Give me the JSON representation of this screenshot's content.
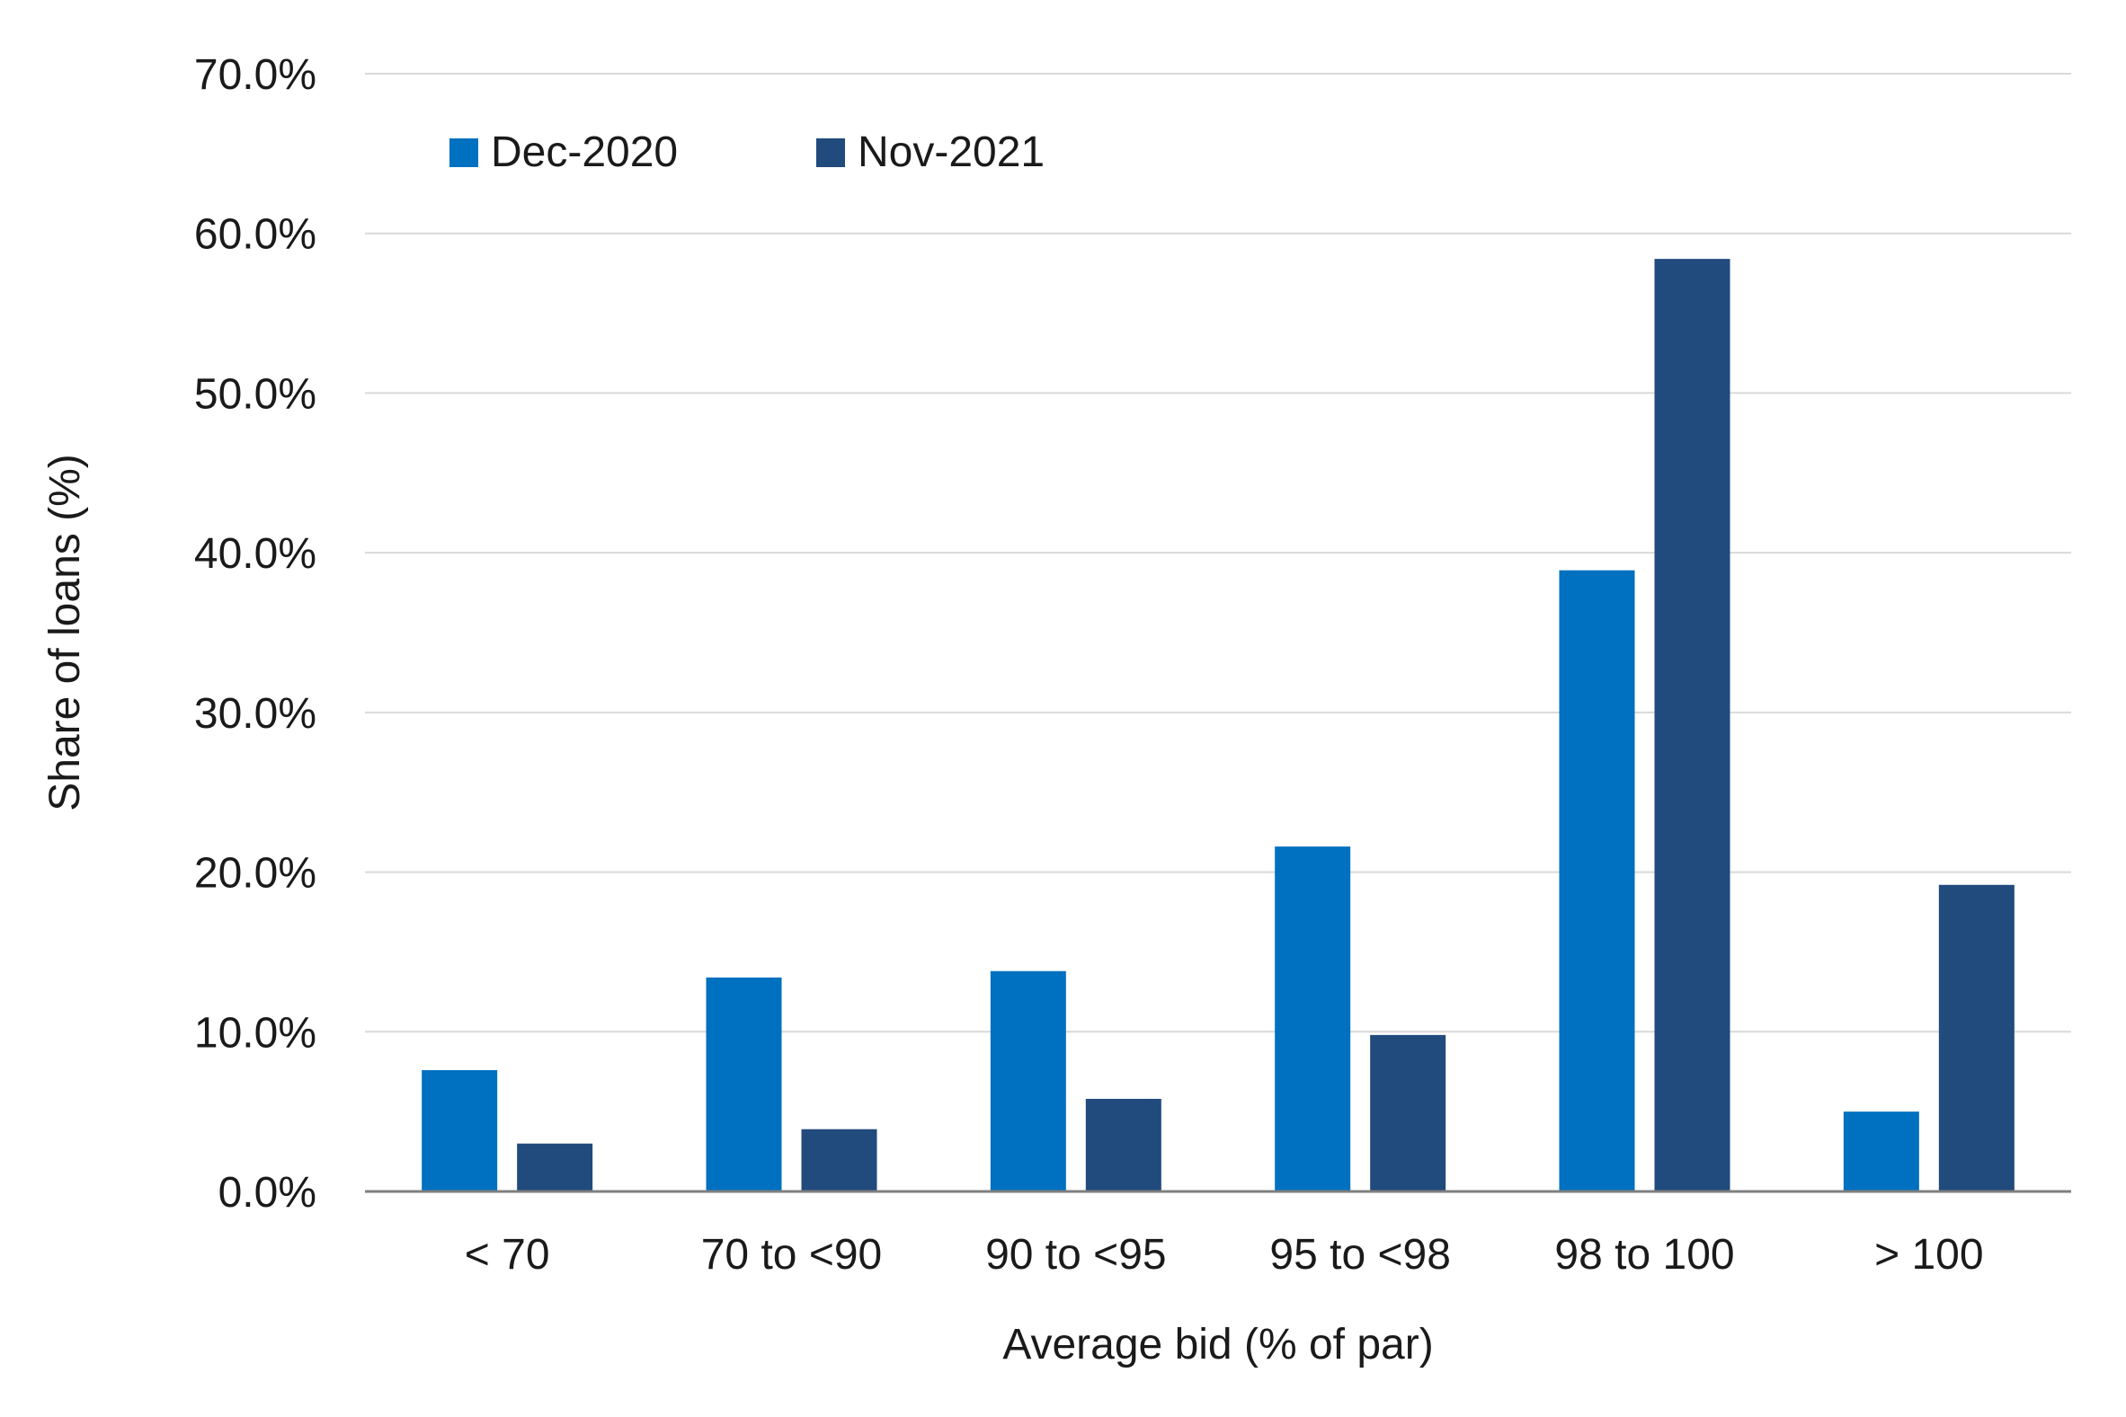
{
  "chart_data": {
    "type": "bar",
    "title": "",
    "xlabel": "Average bid (% of par)",
    "ylabel": "Share of loans (%)",
    "ylim": [
      0,
      70
    ],
    "y_ticks": [
      "0.0%",
      "10.0%",
      "20.0%",
      "30.0%",
      "40.0%",
      "50.0%",
      "60.0%",
      "70.0%"
    ],
    "grid": true,
    "legend_position": "top-left",
    "categories": [
      "< 70",
      "70 to <90",
      "90 to <95",
      "95 to <98",
      "98 to 100",
      "> 100"
    ],
    "series": [
      {
        "name": "Dec-2020",
        "color": "#0070C0",
        "values": [
          7.6,
          13.4,
          13.8,
          21.6,
          38.9,
          5.0
        ]
      },
      {
        "name": "Nov-2021",
        "color": "#214A7D",
        "values": [
          3.0,
          3.9,
          5.8,
          9.8,
          58.4,
          19.2
        ]
      }
    ]
  }
}
